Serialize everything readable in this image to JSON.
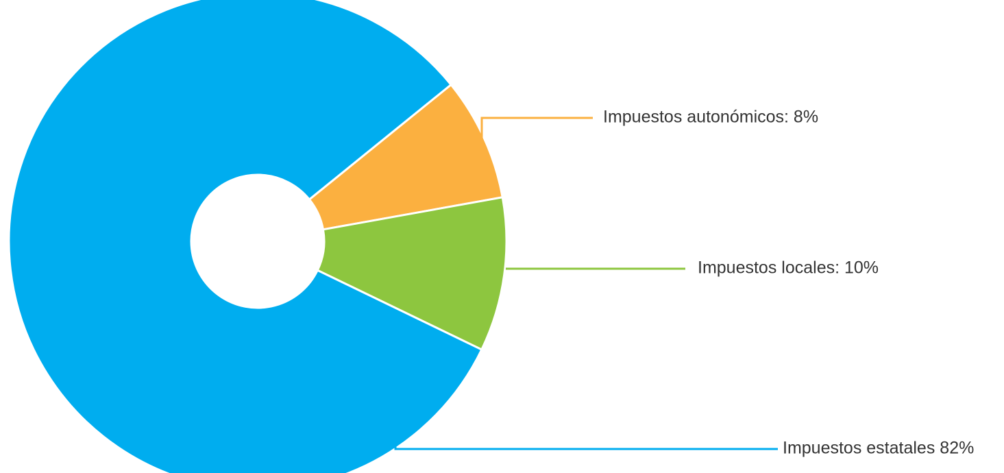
{
  "chart_data": {
    "type": "donut",
    "value_labels": [
      "Impuestos autonómicos: 8%",
      "Impuestos locales: 10%",
      "Impuestos estatales 82%"
    ],
    "values": [
      8,
      10,
      82
    ],
    "colors": [
      "#fbb040",
      "#8dc63f",
      "#00adef"
    ]
  }
}
